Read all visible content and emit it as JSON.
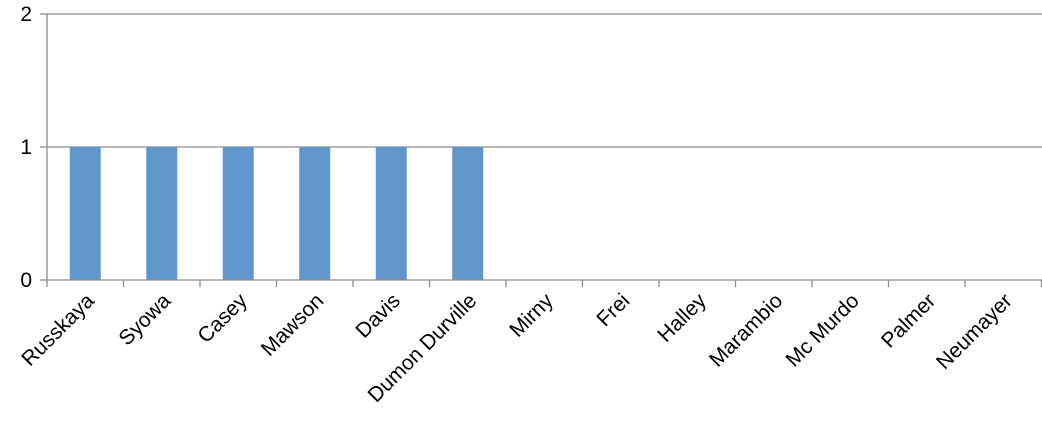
{
  "chart_data": {
    "type": "bar",
    "title": "",
    "xlabel": "",
    "ylabel": "",
    "categories": [
      "Russkaya",
      "Syowa",
      "Casey",
      "Mawson",
      "Davis",
      "Dumon Durville",
      "Mirny",
      "Frei",
      "Halley",
      "Marambio",
      "Mc Murdo",
      "Palmer",
      "Neumayer"
    ],
    "values": [
      1,
      1,
      1,
      1,
      1,
      1,
      0,
      0,
      0,
      0,
      0,
      0,
      0
    ],
    "ylim": [
      0,
      2
    ],
    "yticks": [
      "0",
      "1",
      "2"
    ],
    "grid": true,
    "legend": "none",
    "bar_color": "#6196cb",
    "grid_color": "#8c8c8c"
  }
}
